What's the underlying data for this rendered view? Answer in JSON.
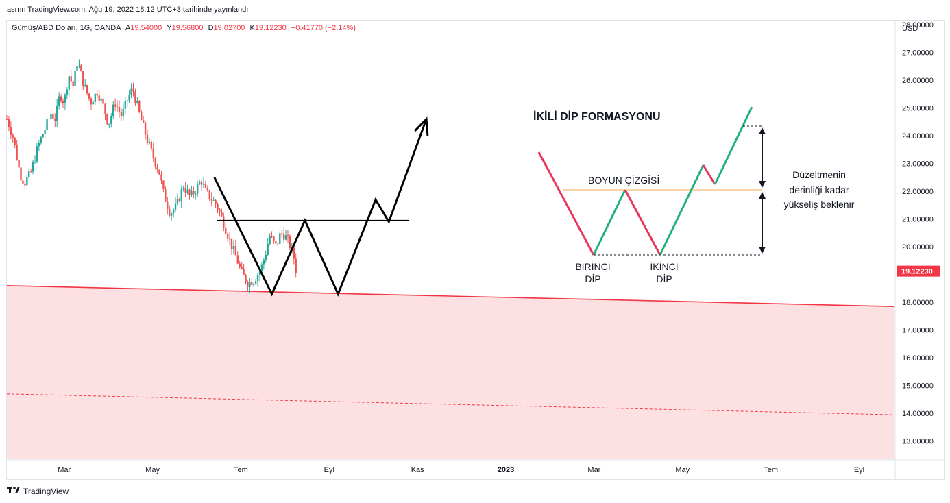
{
  "header": {
    "published": "asrnn TradingView.com, Ağu 19, 2022 18:12 UTC+3 tarihinde yayınlandı"
  },
  "legend": {
    "symbol": "Gümüş/ABD Doları, 1G, OANDA",
    "open_label": "A",
    "open": "19.54000",
    "high_label": "Y",
    "high": "19.56800",
    "low_label": "D",
    "low": "19.02700",
    "close_label": "K",
    "close": "19.12230",
    "change": "−0.41770 (−2.14%)"
  },
  "footer": {
    "brand": "TradingView"
  },
  "colors": {
    "up": "#26a69a",
    "down": "#ef5350",
    "support": "#f23645",
    "support_fill": "#fde0e2",
    "pattern_red": "#e8365b",
    "pattern_green": "#22b07d",
    "neckline": "#f5c58a"
  },
  "chart_data": {
    "type": "candlestick",
    "currency": "USD",
    "last_price": "19.12230",
    "y_ticks": [
      "28.00000",
      "27.00000",
      "26.00000",
      "25.00000",
      "24.00000",
      "23.00000",
      "22.00000",
      "21.00000",
      "20.00000",
      "18.00000",
      "17.00000",
      "16.00000",
      "15.00000",
      "14.00000",
      "13.00000"
    ],
    "y_range": [
      12.35,
      28.15
    ],
    "x_ticks": [
      "Mar",
      "May",
      "Tem",
      "Eyl",
      "Kas",
      "2023",
      "Mar",
      "May",
      "Tem",
      "Eyl"
    ],
    "x_tick_months": [
      2.0,
      4.0,
      6.0,
      8.0,
      10.0,
      12.0,
      14.0,
      16.0,
      18.0,
      20.0
    ],
    "x_range": [
      0.7,
      20.8
    ],
    "candle_anchors": [
      [
        0.7,
        24.6
      ],
      [
        0.85,
        23.9
      ],
      [
        1.0,
        22.6
      ],
      [
        1.1,
        22.3
      ],
      [
        1.25,
        22.7
      ],
      [
        1.4,
        23.6
      ],
      [
        1.55,
        24.2
      ],
      [
        1.7,
        24.8
      ],
      [
        1.8,
        24.6
      ],
      [
        1.9,
        25.5
      ],
      [
        2.0,
        25.2
      ],
      [
        2.1,
        26.2
      ],
      [
        2.2,
        25.8
      ],
      [
        2.3,
        26.7
      ],
      [
        2.45,
        25.8
      ],
      [
        2.6,
        25.2
      ],
      [
        2.75,
        25.6
      ],
      [
        2.9,
        25.0
      ],
      [
        3.0,
        24.4
      ],
      [
        3.15,
        25.2
      ],
      [
        3.3,
        24.7
      ],
      [
        3.45,
        25.4
      ],
      [
        3.55,
        25.7
      ],
      [
        3.7,
        24.8
      ],
      [
        3.85,
        24.0
      ],
      [
        4.0,
        23.3
      ],
      [
        4.15,
        22.7
      ],
      [
        4.25,
        21.9
      ],
      [
        4.4,
        21.2
      ],
      [
        4.55,
        21.5
      ],
      [
        4.7,
        22.2
      ],
      [
        4.85,
        21.8
      ],
      [
        5.0,
        22.1
      ],
      [
        5.1,
        22.4
      ],
      [
        5.2,
        22.0
      ],
      [
        5.3,
        21.8
      ],
      [
        5.45,
        21.5
      ],
      [
        5.6,
        20.9
      ],
      [
        5.75,
        20.2
      ],
      [
        5.9,
        19.6
      ],
      [
        6.0,
        19.1
      ],
      [
        6.15,
        18.7
      ],
      [
        6.3,
        18.8
      ],
      [
        6.45,
        19.2
      ],
      [
        6.55,
        19.7
      ],
      [
        6.65,
        20.4
      ],
      [
        6.8,
        20.0
      ],
      [
        6.9,
        20.5
      ],
      [
        7.0,
        20.4
      ],
      [
        7.1,
        20.1
      ],
      [
        7.2,
        19.6
      ],
      [
        7.25,
        19.12
      ]
    ],
    "support_line": {
      "points": [
        [
          0.7,
          18.6
        ],
        [
          20.8,
          17.85
        ]
      ],
      "style": "solid"
    },
    "lower_line": {
      "points": [
        [
          0.7,
          14.7
        ],
        [
          20.8,
          13.95
        ]
      ],
      "style": "dashed"
    },
    "projection_path": [
      [
        5.4,
        22.5
      ],
      [
        6.7,
        18.3
      ],
      [
        7.45,
        20.95
      ],
      [
        8.2,
        18.3
      ],
      [
        9.05,
        21.7
      ],
      [
        9.35,
        20.9
      ],
      [
        10.2,
        24.6
      ]
    ],
    "projection_neckline": {
      "points": [
        [
          5.45,
          20.95
        ],
        [
          9.8,
          20.95
        ]
      ]
    },
    "pattern": {
      "title": "İKİLİ DİP FORMASYONU",
      "neckline_label": "BOYUN ÇİZGİSİ",
      "first_bottom_line1": "BİRİNCİ",
      "first_bottom_line2": "DİP",
      "second_bottom_line1": "İKİNCİ",
      "second_bottom_line2": "DİP",
      "note_line1": "Düzeltmenin",
      "note_line2": "derinliği kadar",
      "note_line3": "yükseliş beklenir"
    }
  }
}
